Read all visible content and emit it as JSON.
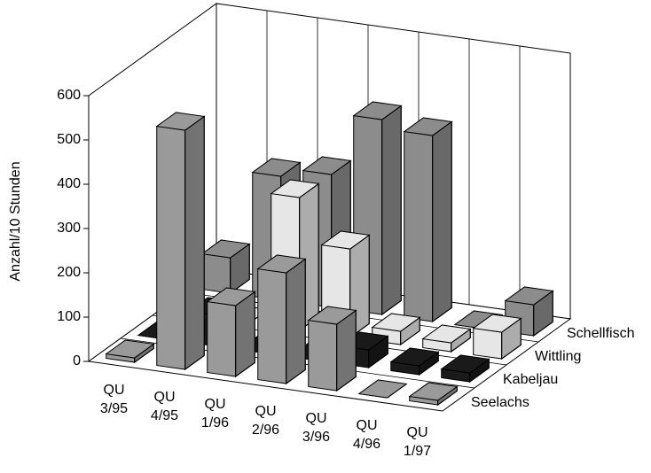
{
  "chart_data": {
    "type": "bar3d",
    "y_label": "Anzahl/10 Stunden",
    "categories": [
      "QU 3/95",
      "QU 4/95",
      "QU 1/96",
      "QU 2/96",
      "QU 3/96",
      "QU 4/96",
      "QU 1/97"
    ],
    "series": [
      {
        "name": "Seelachs",
        "color": "#9a9a9a",
        "values": [
          10,
          540,
          160,
          250,
          150,
          0,
          10
        ]
      },
      {
        "name": "Kabeljau",
        "color": "#1a1a1a",
        "values": [
          0,
          70,
          0,
          0,
          40,
          20,
          20
        ]
      },
      {
        "name": "Wittling",
        "color": "#e6e6e6",
        "values": [
          0,
          0,
          300,
          200,
          30,
          20,
          60
        ]
      },
      {
        "name": "Schellfisch",
        "color": "#8c8c8c",
        "values": [
          80,
          280,
          300,
          440,
          420,
          0,
          70
        ]
      }
    ],
    "ylim": [
      0,
      600
    ],
    "yticks": [
      0,
      100,
      200,
      300,
      400,
      500,
      600
    ]
  }
}
